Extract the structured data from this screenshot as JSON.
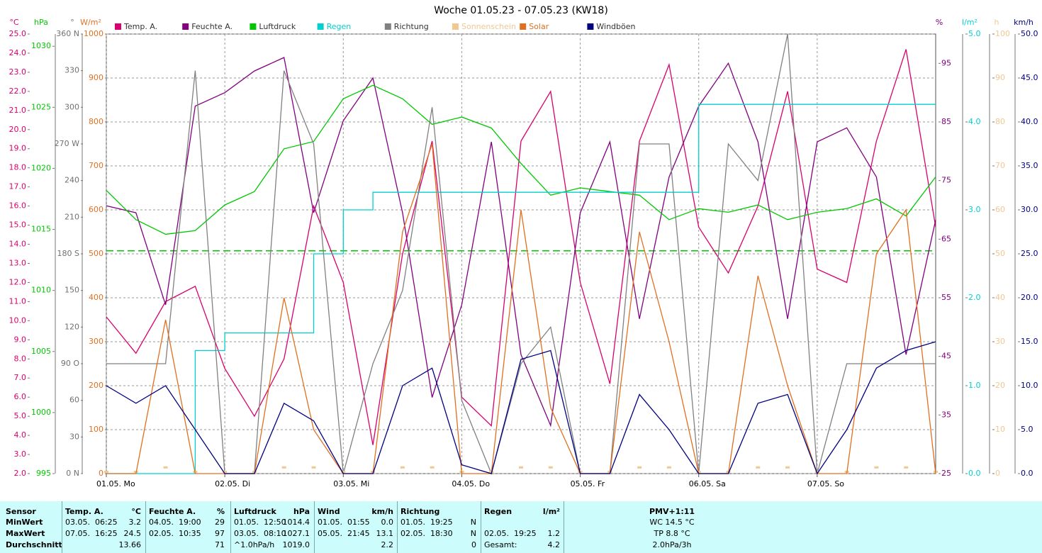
{
  "chart_data": {
    "type": "line",
    "title": "Woche 01.05.23 - 07.05.23 (KW18)",
    "x": [
      0,
      6,
      12,
      18,
      24,
      30,
      36,
      42,
      48,
      54,
      60,
      66,
      72,
      78,
      84,
      90,
      96,
      102,
      108,
      114,
      120,
      126,
      132,
      138,
      144,
      150,
      156,
      162,
      168
    ],
    "xlim": [
      0,
      168
    ],
    "xticks": [
      {
        "value": 0,
        "label": "01.05. Mo"
      },
      {
        "value": 24,
        "label": "02.05. Di"
      },
      {
        "value": 48,
        "label": "03.05. Mi"
      },
      {
        "value": 72,
        "label": "04.05. Do"
      },
      {
        "value": 96,
        "label": "05.05. Fr"
      },
      {
        "value": 120,
        "label": "06.05. Sa"
      },
      {
        "value": 144,
        "label": "07.05. So"
      }
    ],
    "grid": true,
    "axes": [
      {
        "unit": "°C",
        "color": "#d8006e",
        "ylim": [
          2,
          25
        ],
        "yticks": [
          {
            "value": 2,
            "label": "2.0"
          },
          {
            "value": 3,
            "label": "3.0"
          },
          {
            "value": 4,
            "label": "4.0"
          },
          {
            "value": 5,
            "label": "5.0"
          },
          {
            "value": 6,
            "label": "6.0"
          },
          {
            "value": 7,
            "label": "7.0"
          },
          {
            "value": 8,
            "label": "8.0"
          },
          {
            "value": 9,
            "label": "9.0"
          },
          {
            "value": 10,
            "label": "10.0"
          },
          {
            "value": 11,
            "label": "11.0"
          },
          {
            "value": 12,
            "label": "12.0"
          },
          {
            "value": 13,
            "label": "13.0"
          },
          {
            "value": 14,
            "label": "14.0"
          },
          {
            "value": 15,
            "label": "15.0"
          },
          {
            "value": 16,
            "label": "16.0"
          },
          {
            "value": 17,
            "label": "17.0"
          },
          {
            "value": 18,
            "label": "18.0"
          },
          {
            "value": 19,
            "label": "19.0"
          },
          {
            "value": 20,
            "label": "20.0"
          },
          {
            "value": 21,
            "label": "21.0"
          },
          {
            "value": 22,
            "label": "22.0"
          },
          {
            "value": 23,
            "label": "23.0"
          },
          {
            "value": 24,
            "label": "24.0"
          },
          {
            "value": 25,
            "label": "25.0"
          }
        ]
      },
      {
        "unit": "hPa",
        "color": "#00c800",
        "ylim": [
          995,
          1031
        ],
        "yticks": [
          995,
          1000,
          1005,
          1010,
          1015,
          1020,
          1025,
          1030
        ]
      },
      {
        "unit": "°",
        "color": "#707070",
        "ylim": [
          0,
          360
        ],
        "yticks": [
          {
            "value": 0,
            "label": "0 N"
          },
          30,
          60,
          {
            "value": 90,
            "label": "90 O"
          },
          120,
          150,
          {
            "value": 180,
            "label": "180 S"
          },
          210,
          240,
          {
            "value": 270,
            "label": "270 W"
          },
          300,
          330,
          {
            "value": 360,
            "label": "360 N"
          }
        ]
      },
      {
        "unit": "W/m²",
        "color": "#e07020",
        "ylim": [
          0,
          1000
        ],
        "yticks": [
          0,
          100,
          200,
          300,
          400,
          500,
          600,
          700,
          800,
          900,
          1000
        ]
      },
      {
        "unit": "%",
        "color": "#800080",
        "ylim": [
          25,
          100
        ],
        "yticks": [
          25,
          35,
          45,
          55,
          65,
          75,
          85,
          95
        ]
      },
      {
        "unit": "l/m²",
        "color": "#00d0d0",
        "ylim": [
          0,
          5
        ],
        "yticks": [
          {
            "value": 0,
            "label": "0.0"
          },
          {
            "value": 1,
            "label": "1.0"
          },
          {
            "value": 2,
            "label": "2.0"
          },
          {
            "value": 3,
            "label": "3.0"
          },
          {
            "value": 4,
            "label": "4.0"
          },
          {
            "value": 5,
            "label": "5.0"
          }
        ]
      },
      {
        "unit": "h",
        "color": "#f0c890",
        "ylim": [
          0,
          100
        ],
        "yticks": [
          0,
          10,
          20,
          30,
          40,
          50,
          60,
          70,
          80,
          90,
          100
        ]
      },
      {
        "unit": "km/h",
        "color": "#000080",
        "ylim": [
          0,
          50
        ],
        "yticks": [
          {
            "value": 0,
            "label": "0.0"
          },
          {
            "value": 5,
            "label": "5.0"
          },
          {
            "value": 10,
            "label": "10.0"
          },
          {
            "value": 15,
            "label": "15.0"
          },
          {
            "value": 20,
            "label": "20.0"
          },
          {
            "value": 25,
            "label": "25.0"
          },
          {
            "value": 30,
            "label": "30.0"
          },
          {
            "value": 35,
            "label": "35.0"
          },
          {
            "value": 40,
            "label": "40.0"
          },
          {
            "value": 45,
            "label": "45.0"
          },
          {
            "value": 50,
            "label": "50.0"
          }
        ]
      }
    ],
    "grid_axis": 3,
    "reference_line": {
      "axis": 1,
      "value": 1013.25,
      "color": "#00c800"
    },
    "series": [
      {
        "name": "Temp. A.",
        "color": "#d8006e",
        "axis": 0,
        "style": "line",
        "values": [
          10.2,
          8.3,
          11.0,
          11.8,
          7.5,
          5.0,
          8.0,
          16.0,
          12.0,
          3.5,
          13.5,
          19.4,
          6.0,
          4.5,
          19.4,
          22.0,
          12.0,
          6.7,
          19.4,
          23.4,
          14.9,
          12.5,
          16.0,
          22.0,
          12.7,
          12.0,
          19.4,
          24.2,
          14.9
        ]
      },
      {
        "name": "Feuchte A.",
        "color": "#800080",
        "axis": 4,
        "style": "line",
        "values": [
          70.7,
          69.5,
          53.8,
          87.7,
          90,
          93.7,
          96,
          69.5,
          85.2,
          92.5,
          69.5,
          38,
          53.8,
          81.6,
          45.3,
          33.2,
          69.5,
          81.6,
          51.4,
          75.6,
          87.7,
          95,
          81.6,
          51.4,
          81.6,
          84,
          75.6,
          45.3,
          68.3
        ]
      },
      {
        "name": "Luftdruck",
        "color": "#00c800",
        "axis": 1,
        "style": "line",
        "values": [
          1018.2,
          1015.8,
          1014.6,
          1014.9,
          1017.0,
          1018.1,
          1021.6,
          1022.2,
          1025.7,
          1026.8,
          1025.7,
          1023.6,
          1024.2,
          1023.3,
          1020.4,
          1017.8,
          1018.4,
          1018.1,
          1017.8,
          1015.8,
          1016.7,
          1016.4,
          1017.0,
          1015.8,
          1016.4,
          1016.7,
          1017.5,
          1016.1,
          1019.3
        ]
      },
      {
        "name": "Regen",
        "color": "#00d0d0",
        "axis": 5,
        "style": "step",
        "values": [
          0,
          0,
          0,
          1.4,
          1.6,
          1.6,
          1.6,
          2.5,
          3.0,
          3.2,
          3.2,
          3.2,
          3.2,
          3.2,
          3.2,
          3.2,
          3.2,
          3.2,
          3.2,
          3.2,
          4.2,
          4.2,
          4.2,
          4.2,
          4.2,
          4.2,
          4.2,
          4.2,
          4.2
        ]
      },
      {
        "name": "Richtung",
        "color": "#808080",
        "axis": 2,
        "style": "line",
        "values": [
          90,
          90,
          90,
          330,
          0,
          0,
          330,
          270,
          0,
          90,
          150,
          300,
          60,
          0,
          90,
          120,
          0,
          0,
          270,
          270,
          0,
          270,
          240,
          360,
          0,
          90,
          90,
          90,
          90
        ]
      },
      {
        "name": "Sonnenschein",
        "color": "#f0c890",
        "axis": 6,
        "style": "points",
        "values": [
          0,
          0,
          1,
          0,
          0,
          0,
          1,
          1,
          0,
          0,
          1,
          1,
          0,
          0,
          1,
          1,
          0,
          0,
          1,
          1,
          0,
          0,
          1,
          1,
          0,
          0,
          1,
          1,
          0
        ]
      },
      {
        "name": "Solar",
        "color": "#e07020",
        "axis": 3,
        "style": "line",
        "values": [
          0,
          0,
          350,
          0,
          0,
          0,
          400,
          100,
          0,
          0,
          550,
          750,
          0,
          0,
          600,
          150,
          0,
          0,
          550,
          300,
          0,
          0,
          450,
          200,
          0,
          0,
          500,
          600,
          0
        ]
      },
      {
        "name": "Windböen",
        "color": "#000080",
        "axis": 7,
        "style": "line",
        "values": [
          10,
          8,
          10,
          5,
          0,
          0,
          8,
          6,
          0,
          0,
          10,
          12,
          1,
          0,
          13,
          14,
          0,
          0,
          9,
          5,
          0,
          0,
          8,
          9,
          0,
          5,
          12,
          14,
          15
        ]
      }
    ]
  },
  "table": {
    "row_labels": [
      "Sensor",
      "MinWert",
      "MaxWert",
      "Durchschnitt"
    ],
    "columns": [
      {
        "title": "Temp. A.",
        "unit": "°C",
        "cells": [
          {
            "time": "03.05.  06:25",
            "value": "3.2"
          },
          {
            "time": "07.05.  16:25",
            "value": "24.5"
          },
          {
            "value": "13.66"
          }
        ]
      },
      {
        "title": "Feuchte A.",
        "unit": "%",
        "cells": [
          {
            "time": "04.05.  19:00",
            "value": "29"
          },
          {
            "time": "02.05.  10:35",
            "value": "97"
          },
          {
            "value": "71"
          }
        ]
      },
      {
        "title": "Luftdruck",
        "unit": "hPa",
        "cells": [
          {
            "time": "01.05.  12:50",
            "value": "1014.4"
          },
          {
            "time": "03.05.  08:10",
            "value": "1027.1"
          },
          {
            "time": "^1.0hPa/h",
            "value": "1019.0"
          }
        ]
      },
      {
        "title": "Wind",
        "unit": "km/h",
        "cells": [
          {
            "time": "01.05.  01:55",
            "value": "0.0"
          },
          {
            "time": "05.05.  21:45",
            "value": "13.1"
          },
          {
            "value": "2.2"
          }
        ]
      },
      {
        "title": "Richtung",
        "cells": [
          {
            "time": "01.05.  19:25",
            "value": "N"
          },
          {
            "time": "02.05.  18:30",
            "value": "N"
          },
          {
            "value": "0"
          }
        ]
      },
      {
        "title": "Regen",
        "unit": "l/m²",
        "cells": [
          null,
          {
            "time": "02.05.  19:25",
            "value": "1.2"
          },
          {
            "time": "Gesamt:",
            "value": "4.2"
          }
        ]
      }
    ],
    "pmv": {
      "title": "PMV+1:11",
      "lines": [
        "WC 14.5 °C",
        "TP 8.8 °C",
        "2.0hPa/3h"
      ]
    }
  }
}
